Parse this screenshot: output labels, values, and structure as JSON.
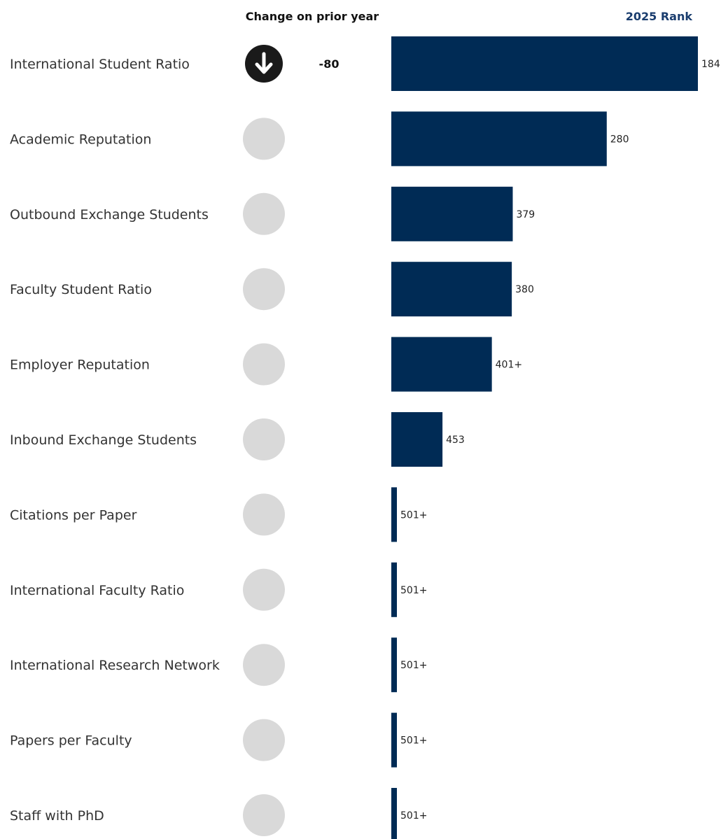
{
  "headers": {
    "change": "Change on prior year",
    "rank": "2025 Rank"
  },
  "colors": {
    "bar": "#002b55",
    "rank_header": "#1a3d6e",
    "neutral_circle": "#d9d9d9",
    "down_circle": "#1a1a1a"
  },
  "chart_data": {
    "type": "bar",
    "orientation": "horizontal",
    "categories": [
      "International Student Ratio",
      "Academic Reputation",
      "Outbound Exchange Students",
      "Faculty Student Ratio",
      "Employer Reputation",
      "Inbound Exchange Students",
      "Citations per Paper",
      "International Faculty Ratio",
      "International Research Network",
      "Papers per Faculty",
      "Staff with PhD"
    ],
    "values": [
      184,
      280,
      379,
      380,
      401,
      453,
      501,
      501,
      501,
      501,
      501
    ],
    "value_labels": [
      "184",
      "280",
      "379",
      "380",
      "401+",
      "453",
      "501+",
      "501+",
      "501+",
      "501+",
      "501+"
    ],
    "change": [
      {
        "direction": "down",
        "icon": "arrow-down-icon",
        "value": "-80"
      },
      {
        "direction": "none",
        "icon": "neutral-circle-icon",
        "value": ""
      },
      {
        "direction": "none",
        "icon": "neutral-circle-icon",
        "value": ""
      },
      {
        "direction": "none",
        "icon": "neutral-circle-icon",
        "value": ""
      },
      {
        "direction": "none",
        "icon": "neutral-circle-icon",
        "value": ""
      },
      {
        "direction": "none",
        "icon": "neutral-circle-icon",
        "value": ""
      },
      {
        "direction": "none",
        "icon": "neutral-circle-icon",
        "value": ""
      },
      {
        "direction": "none",
        "icon": "neutral-circle-icon",
        "value": ""
      },
      {
        "direction": "none",
        "icon": "neutral-circle-icon",
        "value": ""
      },
      {
        "direction": "none",
        "icon": "neutral-circle-icon",
        "value": ""
      },
      {
        "direction": "none",
        "icon": "neutral-circle-icon",
        "value": ""
      }
    ],
    "scale": "bar length decreases as rank number increases; 501+ shown as minimal bar"
  }
}
